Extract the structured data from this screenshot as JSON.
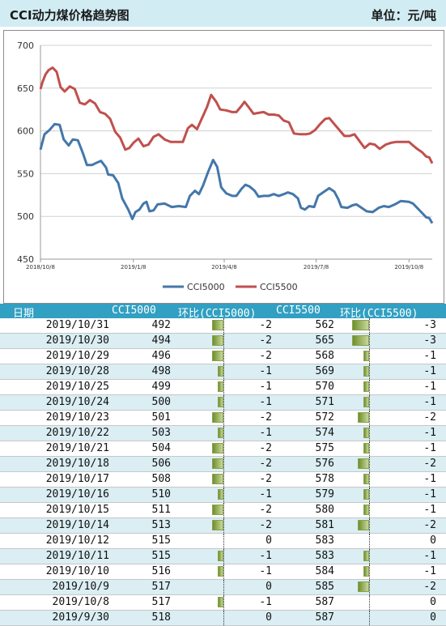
{
  "header": {
    "title": "CCI动力煤价格趋势图",
    "unit": "单位：元/吨"
  },
  "chart_data": {
    "type": "line",
    "ylim": [
      450,
      700
    ],
    "yticks": [
      450,
      500,
      550,
      600,
      650,
      700
    ],
    "x_range": [
      "2018-10-08",
      "2019-10-31"
    ],
    "xticks": [
      {
        "date": "2018-10-08",
        "label": "2018/10/8"
      },
      {
        "date": "2019-01-08",
        "label": "2019/1/8"
      },
      {
        "date": "2019-04-08",
        "label": "2019/4/8"
      },
      {
        "date": "2019-07-08",
        "label": "2019/7/8"
      },
      {
        "date": "2019-10-08",
        "label": "2019/10/8"
      }
    ],
    "grid": "horizontal",
    "legend": "bottom",
    "series": [
      {
        "name": "CCI5000",
        "color": "#4477aa",
        "points": [
          [
            "2018-10-08",
            578
          ],
          [
            "2018-10-12",
            596
          ],
          [
            "2018-10-17",
            601
          ],
          [
            "2018-10-22",
            608
          ],
          [
            "2018-10-27",
            607
          ],
          [
            "2018-10-31",
            590
          ],
          [
            "2018-11-05",
            583
          ],
          [
            "2018-11-09",
            590
          ],
          [
            "2018-11-14",
            589
          ],
          [
            "2018-11-19",
            574
          ],
          [
            "2018-11-23",
            560
          ],
          [
            "2018-11-28",
            560
          ],
          [
            "2018-12-03",
            563
          ],
          [
            "2018-12-07",
            565
          ],
          [
            "2018-12-12",
            557
          ],
          [
            "2018-12-14",
            549
          ],
          [
            "2018-12-19",
            548
          ],
          [
            "2018-12-24",
            539
          ],
          [
            "2018-12-28",
            521
          ],
          [
            "2019-01-03",
            508
          ],
          [
            "2019-01-07",
            497
          ],
          [
            "2019-01-10",
            505
          ],
          [
            "2019-01-14",
            508
          ],
          [
            "2019-01-18",
            515
          ],
          [
            "2019-01-21",
            517
          ],
          [
            "2019-01-24",
            506
          ],
          [
            "2019-01-28",
            507
          ],
          [
            "2019-02-01",
            514
          ],
          [
            "2019-02-08",
            515
          ],
          [
            "2019-02-15",
            511
          ],
          [
            "2019-02-22",
            512
          ],
          [
            "2019-03-01",
            511
          ],
          [
            "2019-03-05",
            524
          ],
          [
            "2019-03-10",
            530
          ],
          [
            "2019-03-14",
            526
          ],
          [
            "2019-03-18",
            536
          ],
          [
            "2019-03-23",
            552
          ],
          [
            "2019-03-28",
            566
          ],
          [
            "2019-04-01",
            558
          ],
          [
            "2019-04-05",
            534
          ],
          [
            "2019-04-10",
            527
          ],
          [
            "2019-04-16",
            524
          ],
          [
            "2019-04-20",
            524
          ],
          [
            "2019-04-25",
            532
          ],
          [
            "2019-04-29",
            537
          ],
          [
            "2019-05-03",
            535
          ],
          [
            "2019-05-08",
            530
          ],
          [
            "2019-05-12",
            523
          ],
          [
            "2019-05-17",
            524
          ],
          [
            "2019-05-22",
            524
          ],
          [
            "2019-05-27",
            526
          ],
          [
            "2019-06-01",
            524
          ],
          [
            "2019-06-06",
            526
          ],
          [
            "2019-06-10",
            528
          ],
          [
            "2019-06-15",
            526
          ],
          [
            "2019-06-20",
            521
          ],
          [
            "2019-06-23",
            510
          ],
          [
            "2019-06-27",
            508
          ],
          [
            "2019-07-01",
            512
          ],
          [
            "2019-07-06",
            511
          ],
          [
            "2019-07-10",
            524
          ],
          [
            "2019-07-16",
            529
          ],
          [
            "2019-07-21",
            533
          ],
          [
            "2019-07-26",
            529
          ],
          [
            "2019-07-30",
            520
          ],
          [
            "2019-08-02",
            511
          ],
          [
            "2019-08-08",
            510
          ],
          [
            "2019-08-13",
            513
          ],
          [
            "2019-08-17",
            514
          ],
          [
            "2019-08-22",
            510
          ],
          [
            "2019-08-27",
            506
          ],
          [
            "2019-09-02",
            505
          ],
          [
            "2019-09-08",
            510
          ],
          [
            "2019-09-13",
            512
          ],
          [
            "2019-09-18",
            511
          ],
          [
            "2019-09-24",
            514
          ],
          [
            "2019-09-30",
            518
          ],
          [
            "2019-10-08",
            517
          ],
          [
            "2019-10-12",
            515
          ],
          [
            "2019-10-16",
            510
          ],
          [
            "2019-10-21",
            504
          ],
          [
            "2019-10-25",
            499
          ],
          [
            "2019-10-28",
            498
          ],
          [
            "2019-10-31",
            492
          ]
        ]
      },
      {
        "name": "CCI5500",
        "color": "#c0504d",
        "points": [
          [
            "2018-10-08",
            649
          ],
          [
            "2018-10-10",
            657
          ],
          [
            "2018-10-13",
            666
          ],
          [
            "2018-10-16",
            671
          ],
          [
            "2018-10-20",
            674
          ],
          [
            "2018-10-24",
            669
          ],
          [
            "2018-10-28",
            651
          ],
          [
            "2018-11-01",
            646
          ],
          [
            "2018-11-06",
            652
          ],
          [
            "2018-11-11",
            649
          ],
          [
            "2018-11-16",
            633
          ],
          [
            "2018-11-21",
            631
          ],
          [
            "2018-11-26",
            636
          ],
          [
            "2018-12-01",
            632
          ],
          [
            "2018-12-06",
            622
          ],
          [
            "2018-12-11",
            620
          ],
          [
            "2018-12-16",
            614
          ],
          [
            "2018-12-21",
            599
          ],
          [
            "2018-12-26",
            592
          ],
          [
            "2018-12-31",
            578
          ],
          [
            "2019-01-04",
            580
          ],
          [
            "2019-01-08",
            586
          ],
          [
            "2019-01-13",
            591
          ],
          [
            "2019-01-18",
            582
          ],
          [
            "2019-01-23",
            584
          ],
          [
            "2019-01-28",
            593
          ],
          [
            "2019-02-02",
            596
          ],
          [
            "2019-02-08",
            590
          ],
          [
            "2019-02-14",
            587
          ],
          [
            "2019-02-20",
            587
          ],
          [
            "2019-02-26",
            587
          ],
          [
            "2019-03-03",
            603
          ],
          [
            "2019-03-07",
            607
          ],
          [
            "2019-03-12",
            602
          ],
          [
            "2019-03-17",
            615
          ],
          [
            "2019-03-22",
            628
          ],
          [
            "2019-03-26",
            642
          ],
          [
            "2019-03-31",
            634
          ],
          [
            "2019-04-04",
            625
          ],
          [
            "2019-04-10",
            624
          ],
          [
            "2019-04-16",
            622
          ],
          [
            "2019-04-20",
            622
          ],
          [
            "2019-04-25",
            629
          ],
          [
            "2019-04-28",
            634
          ],
          [
            "2019-05-02",
            628
          ],
          [
            "2019-05-07",
            620
          ],
          [
            "2019-05-12",
            621
          ],
          [
            "2019-05-17",
            622
          ],
          [
            "2019-05-22",
            619
          ],
          [
            "2019-05-27",
            619
          ],
          [
            "2019-06-01",
            618
          ],
          [
            "2019-06-06",
            612
          ],
          [
            "2019-06-11",
            610
          ],
          [
            "2019-06-16",
            597
          ],
          [
            "2019-06-22",
            596
          ],
          [
            "2019-06-28",
            596
          ],
          [
            "2019-07-02",
            597
          ],
          [
            "2019-07-07",
            601
          ],
          [
            "2019-07-12",
            608
          ],
          [
            "2019-07-17",
            614
          ],
          [
            "2019-07-21",
            615
          ],
          [
            "2019-07-26",
            608
          ],
          [
            "2019-07-31",
            601
          ],
          [
            "2019-08-05",
            594
          ],
          [
            "2019-08-10",
            594
          ],
          [
            "2019-08-15",
            596
          ],
          [
            "2019-08-20",
            588
          ],
          [
            "2019-08-25",
            580
          ],
          [
            "2019-08-30",
            585
          ],
          [
            "2019-09-04",
            584
          ],
          [
            "2019-09-09",
            579
          ],
          [
            "2019-09-15",
            584
          ],
          [
            "2019-09-20",
            586
          ],
          [
            "2019-09-25",
            587
          ],
          [
            "2019-09-30",
            587
          ],
          [
            "2019-10-08",
            587
          ],
          [
            "2019-10-12",
            583
          ],
          [
            "2019-10-16",
            579
          ],
          [
            "2019-10-21",
            575
          ],
          [
            "2019-10-25",
            570
          ],
          [
            "2019-10-28",
            569
          ],
          [
            "2019-10-31",
            562
          ]
        ]
      }
    ]
  },
  "table": {
    "headers": [
      "日期",
      "CCI5000",
      "环比(CCI5000)",
      "CCI5500",
      "环比(CCI5500)"
    ],
    "rows": [
      {
        "date": "2019/10/31",
        "v1": "492",
        "d1": "-2",
        "v2": "562",
        "d2": "-3"
      },
      {
        "date": "2019/10/30",
        "v1": "494",
        "d1": "-2",
        "v2": "565",
        "d2": "-3"
      },
      {
        "date": "2019/10/29",
        "v1": "496",
        "d1": "-2",
        "v2": "568",
        "d2": "-1"
      },
      {
        "date": "2019/10/28",
        "v1": "498",
        "d1": "-1",
        "v2": "569",
        "d2": "-1"
      },
      {
        "date": "2019/10/25",
        "v1": "499",
        "d1": "-1",
        "v2": "570",
        "d2": "-1"
      },
      {
        "date": "2019/10/24",
        "v1": "500",
        "d1": "-1",
        "v2": "571",
        "d2": "-1"
      },
      {
        "date": "2019/10/23",
        "v1": "501",
        "d1": "-2",
        "v2": "572",
        "d2": "-2"
      },
      {
        "date": "2019/10/22",
        "v1": "503",
        "d1": "-1",
        "v2": "574",
        "d2": "-1"
      },
      {
        "date": "2019/10/21",
        "v1": "504",
        "d1": "-2",
        "v2": "575",
        "d2": "-1"
      },
      {
        "date": "2019/10/18",
        "v1": "506",
        "d1": "-2",
        "v2": "576",
        "d2": "-2"
      },
      {
        "date": "2019/10/17",
        "v1": "508",
        "d1": "-2",
        "v2": "578",
        "d2": "-1"
      },
      {
        "date": "2019/10/16",
        "v1": "510",
        "d1": "-1",
        "v2": "579",
        "d2": "-1"
      },
      {
        "date": "2019/10/15",
        "v1": "511",
        "d1": "-2",
        "v2": "580",
        "d2": "-1"
      },
      {
        "date": "2019/10/14",
        "v1": "513",
        "d1": "-2",
        "v2": "581",
        "d2": "-2"
      },
      {
        "date": "2019/10/12",
        "v1": "515",
        "d1": "0",
        "v2": "583",
        "d2": "0"
      },
      {
        "date": "2019/10/11",
        "v1": "515",
        "d1": "-1",
        "v2": "583",
        "d2": "-1"
      },
      {
        "date": "2019/10/10",
        "v1": "516",
        "d1": "-1",
        "v2": "584",
        "d2": "-1"
      },
      {
        "date": "2019/10/9",
        "v1": "517",
        "d1": "0",
        "v2": "585",
        "d2": "-2"
      },
      {
        "date": "2019/10/8",
        "v1": "517",
        "d1": "-1",
        "v2": "587",
        "d2": "0"
      },
      {
        "date": "2019/9/30",
        "v1": "518",
        "d1": "0",
        "v2": "587",
        "d2": "0"
      }
    ]
  }
}
